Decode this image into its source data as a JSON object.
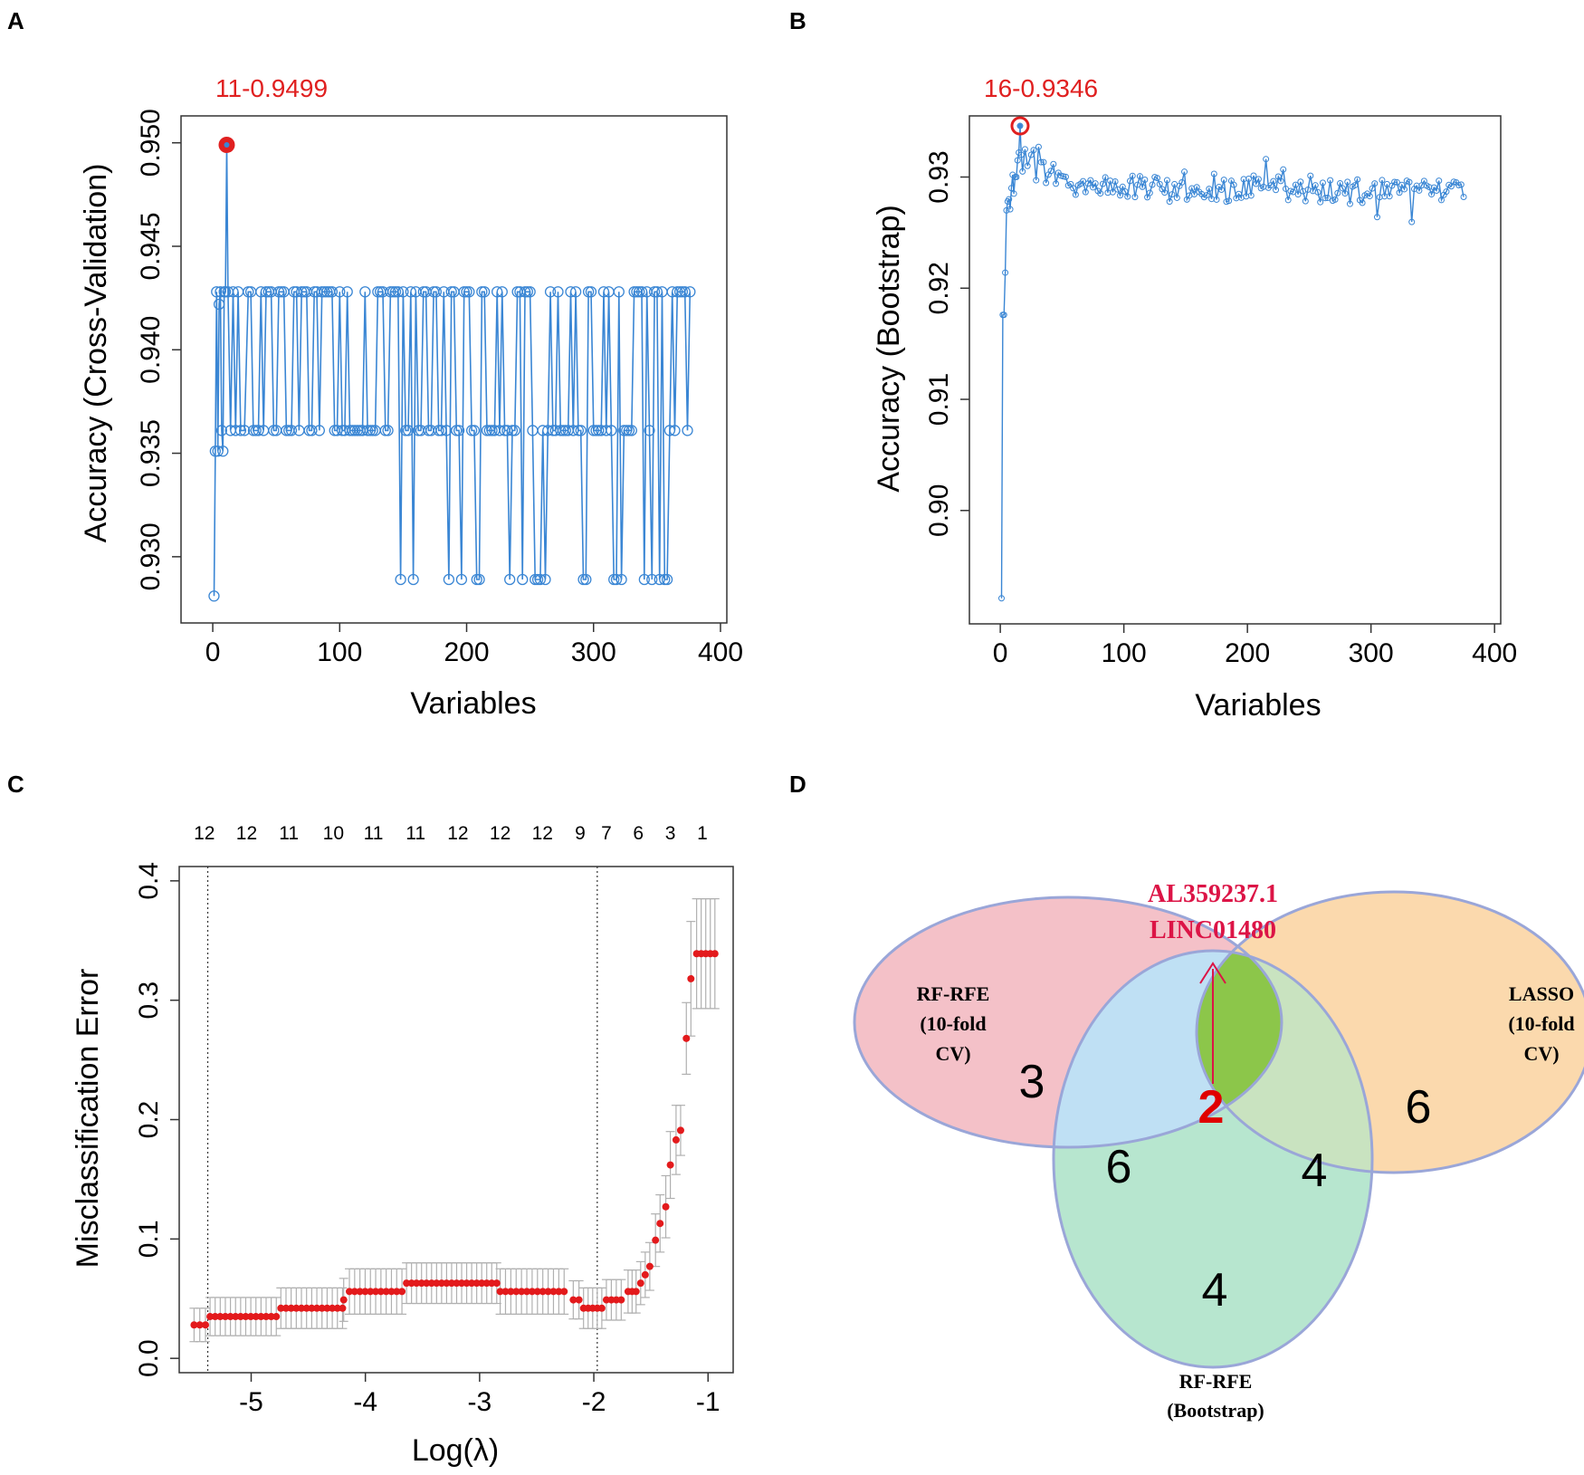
{
  "panels": {
    "a": "A",
    "b": "B",
    "c": "C",
    "d": "D"
  },
  "colors": {
    "line": "#3a86d4",
    "highlight": "#e02020",
    "dot": "#e31a1c",
    "errorbar": "#b0b0b0",
    "venn_cv": "#f4c1c8",
    "venn_lasso": "#fbd9ad",
    "venn_boot": "#b7e6cf",
    "venn_cv_boot": "#bfe0f4",
    "venn_center": "#8cc64a",
    "venn_lasso_boot": "#c9e3c0",
    "venn_stroke": "#9aa6d8"
  },
  "chart_data": [
    {
      "type": "line",
      "panel": "A",
      "title": "11-0.9499",
      "xlabel": "Variables",
      "ylabel": "Accuracy (Cross-Validation)",
      "xlim": [
        -25,
        405
      ],
      "ylim": [
        0.9268,
        0.9513
      ],
      "xticks": [
        0,
        100,
        200,
        300,
        400
      ],
      "xtick_labels": [
        "0",
        "100",
        "200",
        "300",
        "400"
      ],
      "yticks": [
        0.93,
        0.935,
        0.94,
        0.945,
        0.95
      ],
      "ytick_labels": [
        "0.930",
        "0.935",
        "0.940",
        "0.945",
        "0.950"
      ],
      "best": {
        "x": 11,
        "y": 0.9499
      },
      "levels": [
        0.9289,
        0.9361,
        0.9428
      ],
      "x": [
        1,
        2,
        3,
        4,
        5,
        6,
        7,
        8,
        9,
        10,
        11,
        12,
        14,
        16,
        18,
        20,
        22,
        25,
        28
      ],
      "y": [
        0.9281,
        0.9351,
        0.9428,
        0.9351,
        0.9422,
        0.9428,
        0.9361,
        0.9351,
        0.9428,
        0.9428,
        0.9499,
        0.9428,
        0.9361,
        0.9428,
        0.9361,
        0.9428,
        0.9361,
        0.9361,
        0.9428
      ],
      "series_end": 376,
      "low_drops": [
        148,
        158,
        186,
        196,
        207,
        209,
        233,
        244,
        253,
        255,
        258,
        262,
        291,
        293,
        316,
        318,
        321,
        340,
        345,
        351,
        355,
        358,
        377
      ]
    },
    {
      "type": "line",
      "panel": "B",
      "title": "16-0.9346",
      "xlabel": "Variables",
      "ylabel": "Accuracy (Bootstrap)",
      "xlim": [
        -25,
        405
      ],
      "ylim": [
        0.8898,
        0.9355
      ],
      "xticks": [
        0,
        100,
        200,
        300,
        400
      ],
      "xtick_labels": [
        "0",
        "100",
        "200",
        "300",
        "400"
      ],
      "yticks": [
        0.9,
        0.91,
        0.92,
        0.93
      ],
      "ytick_labels": [
        "0.90",
        "0.91",
        "0.92",
        "0.93"
      ],
      "best": {
        "x": 16,
        "y": 0.9346
      },
      "x": [
        1,
        2,
        3,
        4,
        5,
        6,
        7,
        8,
        9,
        10,
        11,
        12,
        13,
        14,
        15,
        16,
        17,
        18,
        20,
        22,
        25
      ],
      "y": [
        0.8921,
        0.9176,
        0.9176,
        0.9214,
        0.927,
        0.9278,
        0.928,
        0.9271,
        0.929,
        0.9302,
        0.9285,
        0.93,
        0.93,
        0.9315,
        0.9322,
        0.9346,
        0.932,
        0.9305,
        0.9325,
        0.931,
        0.932
      ],
      "series_end": 376,
      "tail_mean": 0.9287
    },
    {
      "type": "scatter",
      "panel": "C",
      "xlabel": "Log(λ)",
      "ylabel": "Misclassification Error",
      "xlim": [
        -5.63,
        -0.78
      ],
      "ylim": [
        -0.012,
        0.412
      ],
      "xticks": [
        -5,
        -4,
        -3,
        -2,
        -1
      ],
      "xtick_labels": [
        "-5",
        "-4",
        "-3",
        "-2",
        "-1"
      ],
      "yticks": [
        0.0,
        0.1,
        0.2,
        0.3,
        0.4
      ],
      "ytick_labels": [
        "0.0",
        "0.1",
        "0.2",
        "0.3",
        "0.4"
      ],
      "vlines": [
        -5.38,
        -1.97
      ],
      "top_axis": {
        "x": [
          -5.41,
          -5.04,
          -4.67,
          -4.28,
          -3.93,
          -3.56,
          -3.19,
          -2.82,
          -2.45,
          -2.12,
          -1.89,
          -1.61,
          -1.33,
          -1.05
        ],
        "labels": [
          "12",
          "12",
          "11",
          "10",
          "11",
          "11",
          "12",
          "12",
          "12",
          "9",
          "7",
          "6",
          "3",
          "1"
        ]
      },
      "segments": [
        {
          "x0": -5.5,
          "x1": -5.4,
          "y": 0.028,
          "se": 0.014
        },
        {
          "x0": -5.36,
          "x1": -4.78,
          "y": 0.035,
          "se": 0.016
        },
        {
          "x0": -4.74,
          "x1": -4.2,
          "y": 0.042,
          "se": 0.017
        },
        {
          "x0": -4.14,
          "x1": -3.68,
          "y": 0.056,
          "se": 0.019
        },
        {
          "x0": -3.64,
          "x1": -2.85,
          "y": 0.063,
          "se": 0.017
        },
        {
          "x0": -2.82,
          "x1": -2.26,
          "y": 0.056,
          "se": 0.019
        },
        {
          "x0": -2.18,
          "x1": -2.13,
          "y": 0.049,
          "se": 0.016
        },
        {
          "x0": -2.09,
          "x1": -1.93,
          "y": 0.042,
          "se": 0.017
        },
        {
          "x0": -1.89,
          "x1": -1.76,
          "y": 0.049,
          "se": 0.017
        },
        {
          "x0": -1.7,
          "x1": -1.63,
          "y": 0.056,
          "se": 0.018
        }
      ],
      "points": [
        {
          "x": -4.19,
          "y": 0.049,
          "se": 0.018
        },
        {
          "x": -1.59,
          "y": 0.063,
          "se": 0.018
        },
        {
          "x": -1.55,
          "y": 0.07,
          "se": 0.019
        },
        {
          "x": -1.51,
          "y": 0.077,
          "se": 0.02
        },
        {
          "x": -1.46,
          "y": 0.099,
          "se": 0.022
        },
        {
          "x": -1.42,
          "y": 0.113,
          "se": 0.024
        },
        {
          "x": -1.37,
          "y": 0.127,
          "se": 0.026
        },
        {
          "x": -1.33,
          "y": 0.162,
          "se": 0.028
        },
        {
          "x": -1.28,
          "y": 0.183,
          "se": 0.029
        },
        {
          "x": -1.24,
          "y": 0.191,
          "se": 0.021
        },
        {
          "x": -1.19,
          "y": 0.268,
          "se": 0.03
        },
        {
          "x": -1.15,
          "y": 0.318,
          "se": 0.048
        },
        {
          "x": -1.1,
          "y": 0.339,
          "se": 0.046
        },
        {
          "x": -1.06,
          "y": 0.339,
          "se": 0.046
        },
        {
          "x": -1.02,
          "y": 0.339,
          "se": 0.046
        },
        {
          "x": -0.98,
          "y": 0.339,
          "se": 0.046
        },
        {
          "x": -0.94,
          "y": 0.339,
          "se": 0.046
        }
      ]
    }
  ],
  "venn": {
    "sets": {
      "cv": [
        "RF-RFE",
        "(10-fold",
        "CV)"
      ],
      "lasso": [
        "LASSO",
        "(10-fold",
        "CV)"
      ],
      "boot": [
        "RF-RFE",
        "(Bootstrap)"
      ]
    },
    "counts": {
      "cv_only": "3",
      "lasso_only": "6",
      "boot_only": "4",
      "cv_boot": "6",
      "lasso_boot": "4",
      "all_three": "2"
    },
    "shared_genes": [
      "AL359237.1",
      "LINC01480"
    ]
  }
}
